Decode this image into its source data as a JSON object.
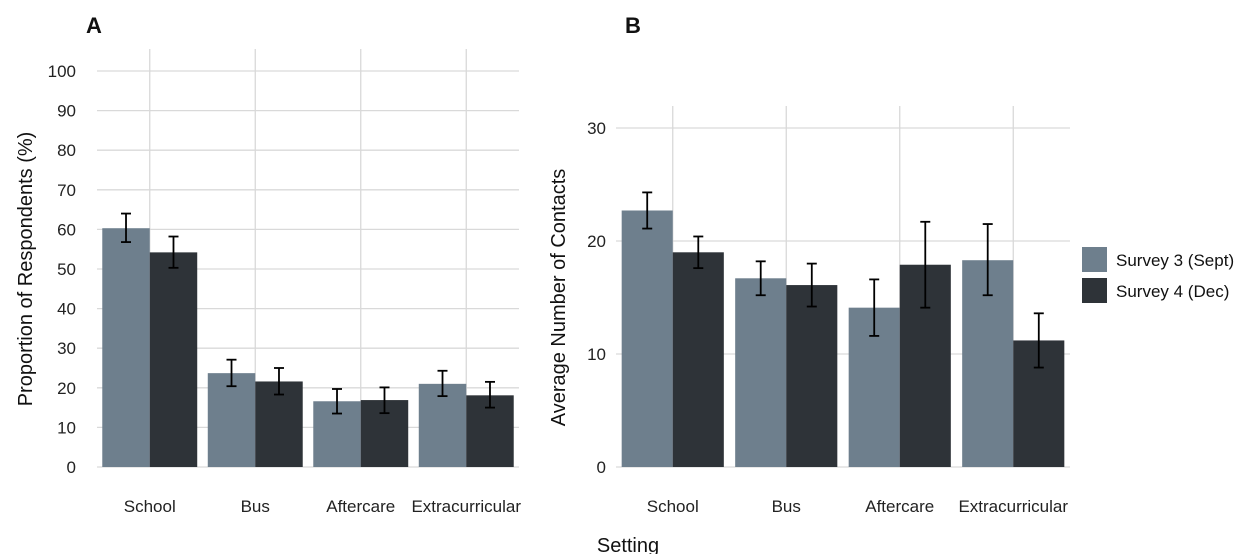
{
  "colors": {
    "series1": "#6e7f8d",
    "series2": "#2e3338",
    "grid": "#d9d9d9",
    "errorbar": "#000000"
  },
  "shared": {
    "xlabel": "Setting"
  },
  "legend": {
    "items": [
      "Survey 3 (Sept)",
      "Survey 4 (Dec)"
    ]
  },
  "chart_data": [
    {
      "type": "bar",
      "panel": "A",
      "ylabel": "Proportion of Respondents (%)",
      "xlabel": "Setting",
      "categories": [
        "School",
        "Bus",
        "Aftercare",
        "Extracurricular"
      ],
      "ylim": [
        0,
        100
      ],
      "yticks": [
        0,
        10,
        20,
        30,
        40,
        50,
        60,
        70,
        80,
        90,
        100
      ],
      "series": [
        {
          "name": "Survey 3 (Sept)",
          "values": [
            60.3,
            23.7,
            16.6,
            21.0
          ],
          "err_low": [
            56.8,
            20.4,
            13.5,
            17.9
          ],
          "err_high": [
            64.0,
            27.1,
            19.7,
            24.3
          ]
        },
        {
          "name": "Survey 4 (Dec)",
          "values": [
            54.2,
            21.6,
            16.9,
            18.1
          ],
          "err_low": [
            50.3,
            18.3,
            13.6,
            15.0
          ],
          "err_high": [
            58.2,
            25.0,
            20.1,
            21.5
          ]
        }
      ]
    },
    {
      "type": "bar",
      "panel": "B",
      "ylabel": "Average Number of Contacts",
      "xlabel": "Setting",
      "categories": [
        "School",
        "Bus",
        "Aftercare",
        "Extracurricular"
      ],
      "ylim": [
        0,
        30
      ],
      "yticks": [
        0,
        10,
        20,
        30
      ],
      "series": [
        {
          "name": "Survey 3 (Sept)",
          "values": [
            22.7,
            16.7,
            14.1,
            18.3
          ],
          "err_low": [
            21.1,
            15.2,
            11.6,
            15.2
          ],
          "err_high": [
            24.3,
            18.2,
            16.6,
            21.5
          ]
        },
        {
          "name": "Survey 4 (Dec)",
          "values": [
            19.0,
            16.1,
            17.9,
            11.2
          ],
          "err_low": [
            17.6,
            14.2,
            14.1,
            8.8
          ],
          "err_high": [
            20.4,
            18.0,
            21.7,
            13.6
          ]
        }
      ]
    }
  ]
}
